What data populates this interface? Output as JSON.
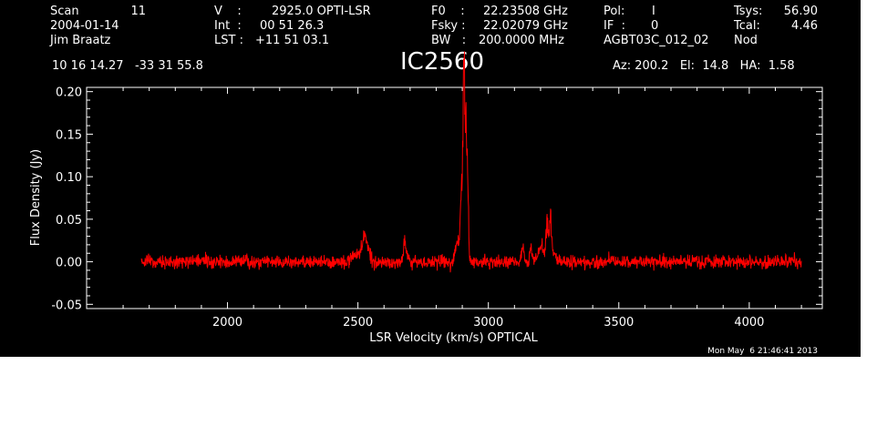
{
  "header": {
    "scan_label": "Scan",
    "scan_value": "11",
    "date": "2004-01-14",
    "observer": "Jim Braatz",
    "v_label": "V    :",
    "v_value": "2925.0 OPTI-LSR",
    "int_label": "Int  :",
    "int_value": "00 51 26.3",
    "lst_label": "LST :",
    "lst_value": "+11 51 03.1",
    "f0_label": "F0    :",
    "f0_value": "22.23508 GHz",
    "fsky_label": "Fsky :",
    "fsky_value": "22.02079 GHz",
    "bw_label": "BW   :",
    "bw_value": "200.0000 MHz",
    "pol_label": "Pol:",
    "pol_value": "I",
    "if_label": "IF  :",
    "if_value": "0",
    "project": "AGBT03C_012_02",
    "tsys_label": "Tsys:",
    "tsys_value": "56.90",
    "tcal_label": "Tcal:",
    "tcal_value": "4.46",
    "mode": "Nod",
    "coords": "10 16 14.27   -33 31 55.8",
    "source": "IC2560",
    "azelha": "Az: 200.2   El:  14.8   HA:  1.58",
    "timestamp": "Mon May  6 21:46:41 2013"
  },
  "chart_data": {
    "type": "line",
    "xlabel": "LSR Velocity (km/s) OPTICAL",
    "ylabel": "Flux Density (Jy)",
    "xlim": [
      1460,
      4280
    ],
    "ylim": [
      -0.055,
      0.205
    ],
    "xticks": [
      2000,
      2500,
      3000,
      3500,
      4000
    ],
    "yticks": [
      -0.05,
      0.0,
      0.05,
      0.1,
      0.15,
      0.2
    ],
    "ytick_labels": [
      "-0.05",
      "0.00",
      "0.05",
      "0.10",
      "0.15",
      "0.20"
    ],
    "line_color": "#ff0000",
    "background": "#000000",
    "axes_color": "#ffffff",
    "noise_sigma_jy": 0.004,
    "series": [
      {
        "x_range": [
          1670,
          4200
        ],
        "features": [
          {
            "x": 2490,
            "peak": 0.01,
            "width": 10
          },
          {
            "x": 2520,
            "peak": 0.022,
            "width": 10
          },
          {
            "x": 2535,
            "peak": 0.018,
            "width": 8
          },
          {
            "x": 2680,
            "peak": 0.025,
            "width": 6
          },
          {
            "x": 2880,
            "peak": 0.02,
            "width": 8
          },
          {
            "x": 2896,
            "peak": 0.06,
            "width": 5
          },
          {
            "x": 2905,
            "peak": 0.16,
            "width": 4
          },
          {
            "x": 2912,
            "peak": 0.14,
            "width": 4
          },
          {
            "x": 2920,
            "peak": 0.095,
            "width": 4
          },
          {
            "x": 3130,
            "peak": 0.02,
            "width": 4
          },
          {
            "x": 3165,
            "peak": 0.015,
            "width": 5
          },
          {
            "x": 3200,
            "peak": 0.02,
            "width": 8
          },
          {
            "x": 3225,
            "peak": 0.045,
            "width": 5
          },
          {
            "x": 3238,
            "peak": 0.05,
            "width": 4
          },
          {
            "x": 3250,
            "peak": 0.01,
            "width": 10
          }
        ]
      }
    ]
  }
}
